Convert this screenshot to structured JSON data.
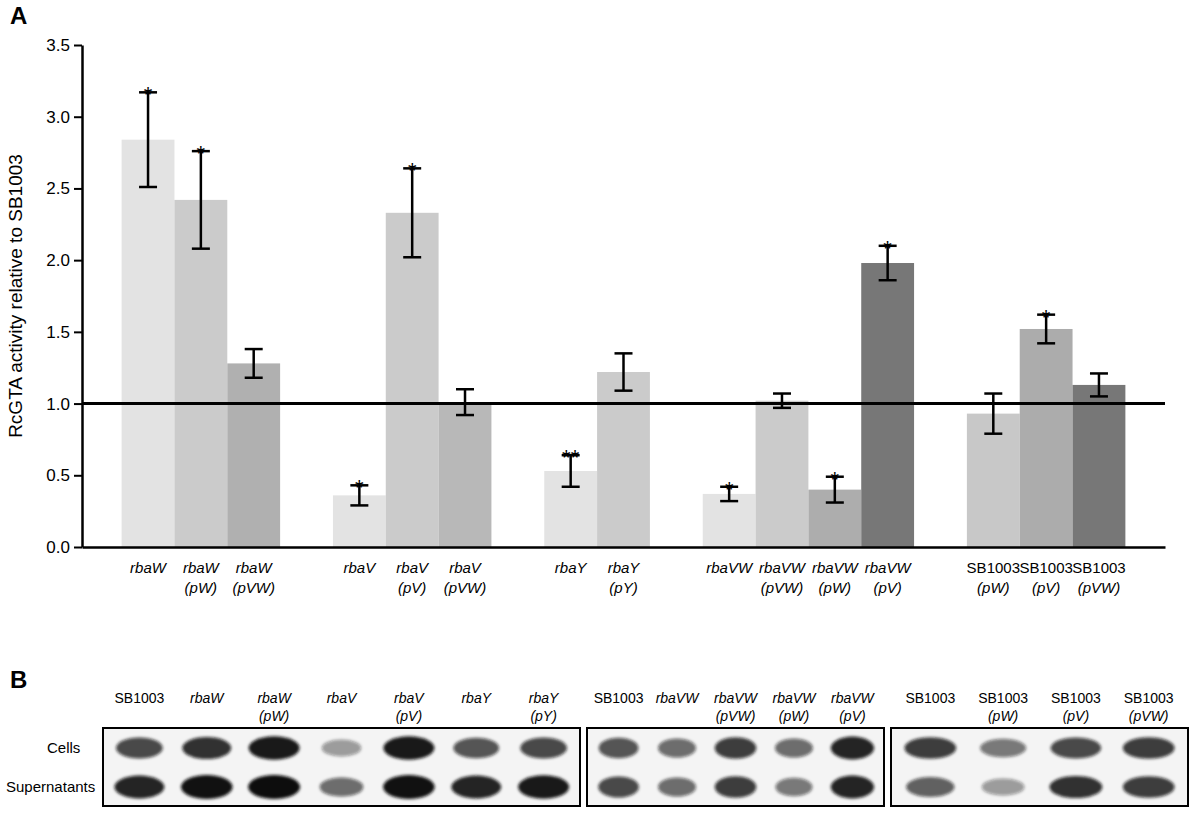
{
  "panel_labels": [
    "A",
    "B"
  ],
  "chart_data": {
    "type": "bar",
    "y_label": "RcGTA activity relative to SB1003",
    "categories": [
      "rbaW",
      "rbaW (pW)",
      "rbaW (pVW)",
      null,
      "rbaV",
      "rbaV (pV)",
      "rbaV (pVW)",
      null,
      "rbaY",
      "rbaY (pY)",
      null,
      "rbaVW",
      "rbaVW (pVW)",
      "rbaVW (pW)",
      "rbaVW (pV)",
      null,
      "SB1003 (pW)",
      "SB1003 (pV)",
      "SB1003 (pVW)"
    ],
    "values": [
      2.84,
      2.42,
      1.28,
      null,
      0.36,
      2.33,
      1.01,
      null,
      0.53,
      1.22,
      null,
      0.37,
      1.02,
      0.4,
      1.98,
      null,
      0.93,
      1.52,
      1.13
    ],
    "errors": [
      0.33,
      0.34,
      0.1,
      null,
      0.07,
      0.31,
      0.09,
      null,
      0.11,
      0.13,
      null,
      0.05,
      0.05,
      0.09,
      0.12,
      null,
      0.14,
      0.1,
      0.08
    ],
    "significance": [
      "*",
      "*",
      null,
      null,
      "*",
      "*",
      null,
      null,
      "**",
      null,
      null,
      "*",
      null,
      "*",
      "*",
      null,
      null,
      "*",
      null
    ],
    "colors": [
      "#e3e3e3",
      "#cbcbcb",
      "#b0b0b0",
      null,
      "#e3e3e3",
      "#cbcbcb",
      "#b8b8b8",
      null,
      "#e3e3e3",
      "#cbcbcb",
      null,
      "#e3e3e3",
      "#cbcbcb",
      "#adadad",
      "#777777",
      null,
      "#c8c8c8",
      "#acacac",
      "#777777"
    ],
    "reference_line": 1,
    "ylim": [
      0,
      3.5
    ],
    "yticks": [
      {
        "value": 0,
        "label": "0.0"
      },
      {
        "value": 0.5,
        "label": "0.5"
      },
      {
        "value": 1,
        "label": "1.0"
      },
      {
        "value": 1.5,
        "label": "1.5"
      },
      {
        "value": 2,
        "label": "2.0"
      },
      {
        "value": 2.5,
        "label": "2.5"
      },
      {
        "value": 3,
        "label": "3.0"
      },
      {
        "value": 3.5,
        "label": "3.5"
      }
    ],
    "grid": false
  },
  "blot": {
    "row_labels": [
      "Cells",
      "Supernatants"
    ],
    "panels": [
      {
        "lanes": [
          "SB1003",
          "rbaW",
          "rbaW (pW)",
          "rbaV",
          "rbaV (pV)",
          "rbaY",
          "rbaY (pY)"
        ],
        "cells": [
          0.75,
          0.85,
          0.95,
          0.4,
          0.95,
          0.7,
          0.75
        ],
        "supernatants": [
          0.9,
          0.98,
          1.0,
          0.6,
          0.98,
          0.9,
          0.95
        ]
      },
      {
        "lanes": [
          "SB1003",
          "rbaVW",
          "rbaVW (pVW)",
          "rbaVW (pW)",
          "rbaVW (pV)"
        ],
        "cells": [
          0.7,
          0.6,
          0.8,
          0.6,
          0.9
        ],
        "supernatants": [
          0.75,
          0.6,
          0.8,
          0.55,
          0.9
        ]
      },
      {
        "lanes": [
          "SB1003",
          "SB1003 (pW)",
          "SB1003 (pV)",
          "SB1003 (pVW)"
        ],
        "cells": [
          0.8,
          0.55,
          0.75,
          0.8
        ],
        "supernatants": [
          0.65,
          0.4,
          0.85,
          0.8
        ]
      }
    ]
  }
}
